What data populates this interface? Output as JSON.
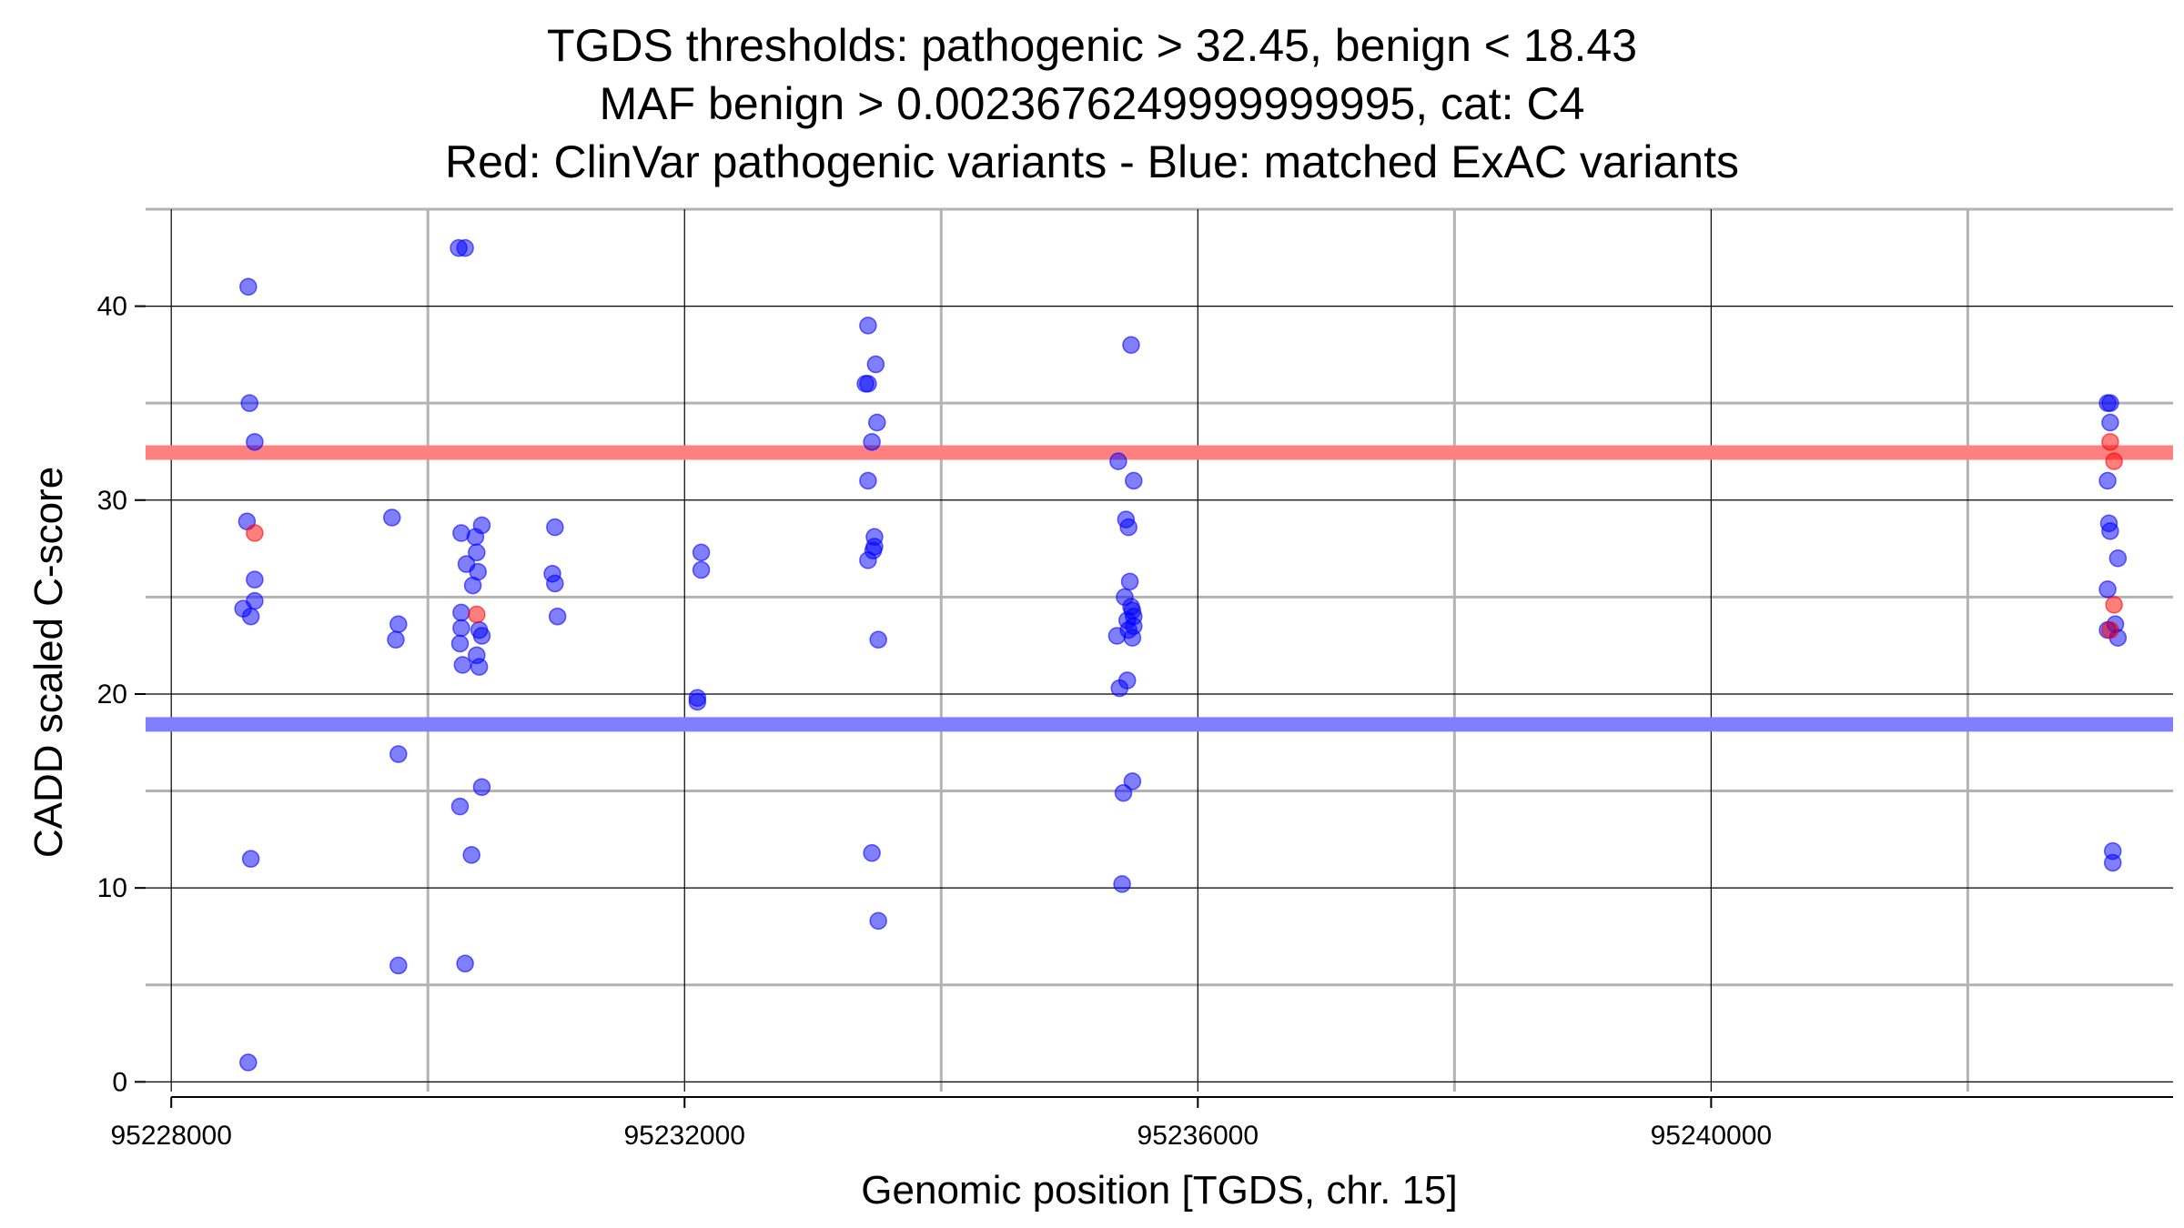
{
  "chart_data": {
    "type": "scatter",
    "title": [
      "TGDS thresholds: pathogenic > 32.45, benign < 18.43",
      "MAF benign > 0.0023676249999999995, cat: C4",
      "Red: ClinVar pathogenic variants - Blue: matched ExAC variants"
    ],
    "xlabel": "Genomic position [TGDS, chr. 15]",
    "ylabel": "CADD scaled C-score",
    "xlim": [
      95227800,
      95243600
    ],
    "ylim": [
      -0.5,
      45
    ],
    "x_ticks": [
      95228000,
      95232000,
      95236000,
      95240000
    ],
    "x_tick_labels": [
      "95228000",
      "95232000",
      "95236000",
      "95240000"
    ],
    "x_minor_gridlines": [
      95230000,
      95234000,
      95238000,
      95242000
    ],
    "y_ticks": [
      0,
      10,
      20,
      30,
      40
    ],
    "y_tick_labels": [
      "0",
      "10",
      "20",
      "30",
      "40"
    ],
    "y_minor_gridlines": [
      5,
      15,
      25,
      35,
      45
    ],
    "thresholds": [
      {
        "name": "pathogenic",
        "value": 32.45,
        "color": "#ff8080"
      },
      {
        "name": "benign",
        "value": 18.43,
        "color": "#8080ff"
      }
    ],
    "series": [
      {
        "name": "ClinVar pathogenic variants",
        "color": "#ff0000",
        "points": [
          {
            "x": 95228650,
            "y": 28.3
          },
          {
            "x": 95230380,
            "y": 24.1
          },
          {
            "x": 95243110,
            "y": 33.0
          },
          {
            "x": 95243140,
            "y": 32.0
          },
          {
            "x": 95243140,
            "y": 24.6
          },
          {
            "x": 95243110,
            "y": 23.3
          }
        ]
      },
      {
        "name": "matched ExAC variants",
        "color": "#0000ff",
        "points": [
          {
            "x": 95228600,
            "y": 41.0
          },
          {
            "x": 95228610,
            "y": 35.0
          },
          {
            "x": 95228650,
            "y": 33.0
          },
          {
            "x": 95228590,
            "y": 28.9
          },
          {
            "x": 95228650,
            "y": 25.9
          },
          {
            "x": 95228650,
            "y": 24.8
          },
          {
            "x": 95228560,
            "y": 24.4
          },
          {
            "x": 95228620,
            "y": 24.0
          },
          {
            "x": 95228620,
            "y": 11.5
          },
          {
            "x": 95228600,
            "y": 1.0
          },
          {
            "x": 95229720,
            "y": 29.1
          },
          {
            "x": 95229770,
            "y": 23.6
          },
          {
            "x": 95229750,
            "y": 22.8
          },
          {
            "x": 95229770,
            "y": 16.9
          },
          {
            "x": 95229770,
            "y": 6.0
          },
          {
            "x": 95230240,
            "y": 43.0
          },
          {
            "x": 95230290,
            "y": 43.0
          },
          {
            "x": 95230260,
            "y": 28.3
          },
          {
            "x": 95230420,
            "y": 28.7
          },
          {
            "x": 95230370,
            "y": 28.1
          },
          {
            "x": 95230380,
            "y": 27.3
          },
          {
            "x": 95230300,
            "y": 26.7
          },
          {
            "x": 95230390,
            "y": 26.3
          },
          {
            "x": 95230350,
            "y": 25.6
          },
          {
            "x": 95230260,
            "y": 24.2
          },
          {
            "x": 95230260,
            "y": 23.4
          },
          {
            "x": 95230400,
            "y": 23.3
          },
          {
            "x": 95230420,
            "y": 23.0
          },
          {
            "x": 95230250,
            "y": 22.6
          },
          {
            "x": 95230380,
            "y": 22.0
          },
          {
            "x": 95230270,
            "y": 21.5
          },
          {
            "x": 95230400,
            "y": 21.4
          },
          {
            "x": 95230420,
            "y": 15.2
          },
          {
            "x": 95230250,
            "y": 14.2
          },
          {
            "x": 95230340,
            "y": 11.7
          },
          {
            "x": 95230290,
            "y": 6.1
          },
          {
            "x": 95230990,
            "y": 28.6
          },
          {
            "x": 95230970,
            "y": 26.2
          },
          {
            "x": 95230990,
            "y": 25.7
          },
          {
            "x": 95231010,
            "y": 24.0
          },
          {
            "x": 95232130,
            "y": 27.3
          },
          {
            "x": 95232130,
            "y": 26.4
          },
          {
            "x": 95232100,
            "y": 19.8
          },
          {
            "x": 95232100,
            "y": 19.6
          },
          {
            "x": 95233430,
            "y": 39.0
          },
          {
            "x": 95233490,
            "y": 37.0
          },
          {
            "x": 95233410,
            "y": 36.0
          },
          {
            "x": 95233430,
            "y": 36.0
          },
          {
            "x": 95233500,
            "y": 34.0
          },
          {
            "x": 95233460,
            "y": 33.0
          },
          {
            "x": 95233430,
            "y": 31.0
          },
          {
            "x": 95233480,
            "y": 28.1
          },
          {
            "x": 95233480,
            "y": 27.6
          },
          {
            "x": 95233470,
            "y": 27.4
          },
          {
            "x": 95233430,
            "y": 26.9
          },
          {
            "x": 95233510,
            "y": 22.8
          },
          {
            "x": 95233460,
            "y": 11.8
          },
          {
            "x": 95233510,
            "y": 8.3
          },
          {
            "x": 95235480,
            "y": 38.0
          },
          {
            "x": 95235380,
            "y": 32.0
          },
          {
            "x": 95235500,
            "y": 31.0
          },
          {
            "x": 95235440,
            "y": 29.0
          },
          {
            "x": 95235460,
            "y": 28.6
          },
          {
            "x": 95235470,
            "y": 25.8
          },
          {
            "x": 95235430,
            "y": 25.0
          },
          {
            "x": 95235480,
            "y": 24.5
          },
          {
            "x": 95235490,
            "y": 24.3
          },
          {
            "x": 95235500,
            "y": 24.0
          },
          {
            "x": 95235450,
            "y": 23.8
          },
          {
            "x": 95235500,
            "y": 23.5
          },
          {
            "x": 95235460,
            "y": 23.3
          },
          {
            "x": 95235370,
            "y": 23.0
          },
          {
            "x": 95235490,
            "y": 22.9
          },
          {
            "x": 95235450,
            "y": 20.7
          },
          {
            "x": 95235390,
            "y": 20.3
          },
          {
            "x": 95235490,
            "y": 15.5
          },
          {
            "x": 95235420,
            "y": 14.9
          },
          {
            "x": 95235410,
            "y": 10.2
          },
          {
            "x": 95243090,
            "y": 35.0
          },
          {
            "x": 95243110,
            "y": 35.0
          },
          {
            "x": 95243110,
            "y": 34.0
          },
          {
            "x": 95243090,
            "y": 31.0
          },
          {
            "x": 95243100,
            "y": 28.8
          },
          {
            "x": 95243110,
            "y": 28.4
          },
          {
            "x": 95243170,
            "y": 27.0
          },
          {
            "x": 95243090,
            "y": 25.4
          },
          {
            "x": 95243150,
            "y": 23.6
          },
          {
            "x": 95243090,
            "y": 23.3
          },
          {
            "x": 95243170,
            "y": 22.9
          },
          {
            "x": 95243130,
            "y": 11.9
          },
          {
            "x": 95243130,
            "y": 11.3
          }
        ]
      }
    ]
  }
}
